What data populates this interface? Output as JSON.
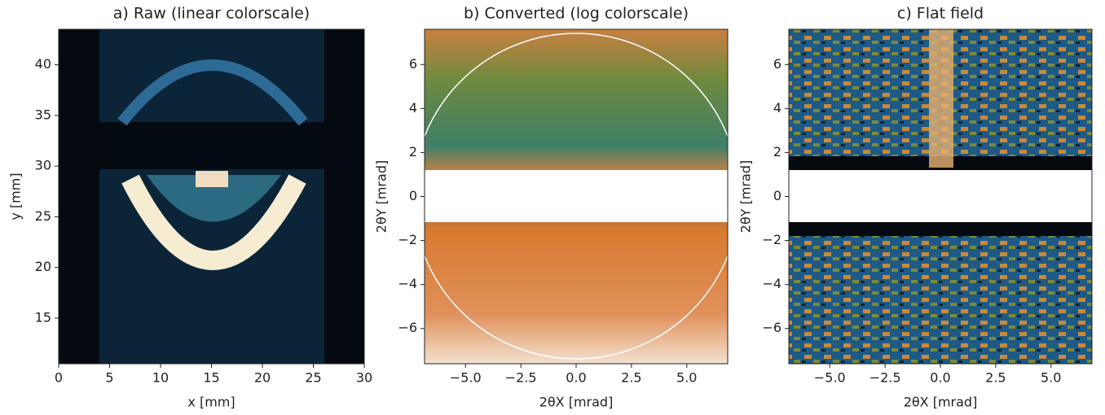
{
  "chart_data": [
    {
      "type": "image",
      "title": "a) Raw (linear colorscale)",
      "xlabel": "x [mm]",
      "ylabel": "y [mm]",
      "xlim": [
        0,
        30
      ],
      "ylim": [
        10.5,
        43.5
      ],
      "xticks": [
        0,
        5,
        10,
        15,
        20,
        25,
        30
      ],
      "yticks": [
        15,
        20,
        25,
        30,
        35,
        40
      ]
    },
    {
      "type": "image",
      "title": "b) Converted (log colorscale)",
      "xlabel": "2θX [mrad]",
      "ylabel": "2θY [mrad]",
      "xlim": [
        -6.85,
        6.85
      ],
      "ylim": [
        -7.6,
        7.6
      ],
      "xticks": [
        {
          "value": -5,
          "label": "−5.0"
        },
        {
          "value": -2.5,
          "label": "−2.5"
        },
        {
          "value": 0,
          "label": "0.0"
        },
        {
          "value": 2.5,
          "label": "2.5"
        },
        {
          "value": 5,
          "label": "5.0"
        }
      ],
      "yticks": [
        {
          "value": -6,
          "label": "−6"
        },
        {
          "value": -4,
          "label": "−4"
        },
        {
          "value": -2,
          "label": "−2"
        },
        0,
        2,
        4,
        6
      ]
    },
    {
      "type": "image",
      "title": "c) Flat field",
      "xlabel": "2θX [mrad]",
      "ylabel": "2θY [mrad]",
      "xlim": [
        -6.85,
        6.85
      ],
      "ylim": [
        -7.6,
        7.6
      ],
      "xticks": [
        {
          "value": -5,
          "label": "−5.0"
        },
        {
          "value": -2.5,
          "label": "−2.5"
        },
        {
          "value": 0,
          "label": "0.0"
        },
        {
          "value": 2.5,
          "label": "2.5"
        },
        {
          "value": 5,
          "label": "5.0"
        }
      ],
      "yticks": [
        {
          "value": -6,
          "label": "−6"
        },
        {
          "value": -4,
          "label": "−4"
        },
        {
          "value": -2,
          "label": "−2"
        },
        0,
        2,
        4,
        6
      ]
    }
  ]
}
